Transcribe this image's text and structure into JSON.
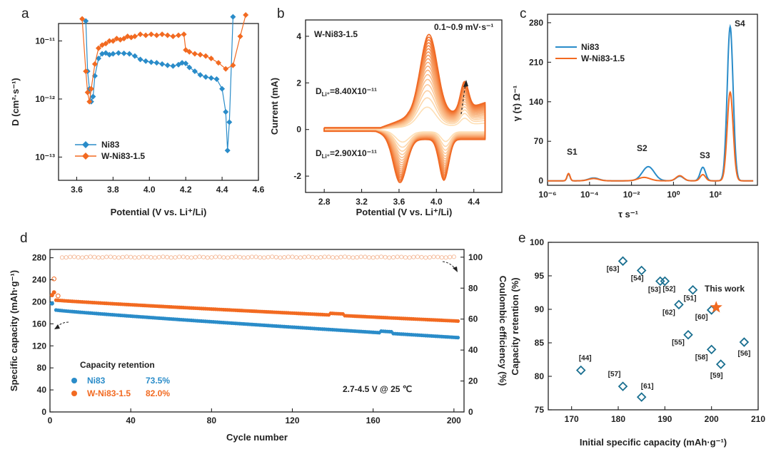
{
  "colors": {
    "ni83": "#2a8cc9",
    "wni": "#f26a21",
    "star": "#f26a21",
    "diamond": "#1a6f90"
  },
  "panel_labels": {
    "a": "a",
    "b": "b",
    "c": "c",
    "d": "d",
    "e": "e"
  },
  "chart_data": [
    {
      "id": "a",
      "type": "scatter",
      "xlabel": "Potential (V vs. Li⁺/Li)",
      "ylabel": "D (cm²·s⁻¹)",
      "xlim": [
        3.5,
        4.6
      ],
      "ylim_log10": [
        -13.4,
        -10.7
      ],
      "yscale": "log",
      "x_ticks": [
        "3.6",
        "3.8",
        "4.0",
        "4.2",
        "4.4",
        "4.6"
      ],
      "y_ticks": [
        "10⁻¹¹",
        "10⁻¹²",
        "10⁻¹³"
      ],
      "legend": [
        "Ni83",
        "W-Ni83-1.5"
      ],
      "series": [
        {
          "name": "Ni83",
          "x": [
            3.65,
            3.66,
            3.67,
            3.68,
            3.69,
            3.7,
            3.72,
            3.74,
            3.76,
            3.78,
            3.8,
            3.83,
            3.86,
            3.89,
            3.92,
            3.95,
            3.98,
            4.01,
            4.04,
            4.07,
            4.1,
            4.13,
            4.16,
            4.18,
            4.2,
            4.22,
            4.25,
            4.28,
            4.31,
            4.34,
            4.37,
            4.4,
            4.42,
            4.43,
            4.44,
            4.46
          ],
          "y": [
            2.2e-11,
            3e-12,
            1.5e-12,
            9e-13,
            1.1e-12,
            2.5e-12,
            5e-12,
            6e-12,
            6.2e-12,
            5.8e-12,
            6e-12,
            6.2e-12,
            6.1e-12,
            6e-12,
            5.5e-12,
            4.8e-12,
            4.5e-12,
            4.3e-12,
            4.2e-12,
            4e-12,
            3.8e-12,
            3.7e-12,
            3.9e-12,
            4.2e-12,
            4.1e-12,
            3.5e-12,
            3e-12,
            2.6e-12,
            2.4e-12,
            2.3e-12,
            2.2e-12,
            1.5e-12,
            6e-13,
            1.3e-13,
            4e-13,
            2.6e-11
          ]
        },
        {
          "name": "W-Ni83-1.5",
          "x": [
            3.63,
            3.65,
            3.66,
            3.67,
            3.68,
            3.7,
            3.72,
            3.74,
            3.76,
            3.78,
            3.8,
            3.82,
            3.84,
            3.86,
            3.88,
            3.9,
            3.92,
            3.95,
            3.98,
            4.01,
            4.04,
            4.07,
            4.1,
            4.13,
            4.16,
            4.19,
            4.2,
            4.22,
            4.25,
            4.28,
            4.31,
            4.34,
            4.38,
            4.42,
            4.46,
            4.5,
            4.53
          ],
          "y": [
            2.4e-11,
            3e-12,
            1.3e-12,
            9e-13,
            1.5e-12,
            4e-12,
            7.5e-12,
            8.5e-12,
            9e-12,
            1e-11,
            1e-11,
            1.1e-11,
            1.05e-11,
            1.1e-11,
            1.2e-11,
            1.15e-11,
            1.2e-11,
            1.3e-11,
            1.25e-11,
            1.3e-11,
            1.25e-11,
            1.3e-11,
            1.25e-11,
            1.2e-11,
            1.25e-11,
            1.3e-11,
            7e-12,
            6.5e-12,
            6e-12,
            5.8e-12,
            5.5e-12,
            5e-12,
            4.2e-12,
            3.3e-12,
            3.8e-12,
            1.2e-11,
            2.8e-11
          ]
        }
      ]
    },
    {
      "id": "b",
      "type": "line",
      "xlabel": "Potential (V vs. Li⁺/Li)",
      "ylabel": "Current (mA)",
      "xlim": [
        2.6,
        4.7
      ],
      "ylim": [
        -2.7,
        4.7
      ],
      "x_ticks": [
        "2.8",
        "3.2",
        "3.6",
        "4.0",
        "4.4"
      ],
      "y_ticks": [
        "4",
        "2",
        "0",
        "-2"
      ],
      "sample": "W-Ni83-1.5",
      "scan_rates": "0.1~0.9 mV·s⁻¹",
      "curve_count": 18,
      "peaks": {
        "anodic": [
          [
            3.9,
            4.1
          ],
          [
            4.3,
            2.1
          ]
        ],
        "cathodic": [
          [
            3.62,
            -2.4
          ],
          [
            4.1,
            -2.4
          ]
        ]
      },
      "annotations": {
        "d_top": "D",
        "d_top_sub": "Li⁺",
        "d_top_val": "=8.40X10⁻¹¹",
        "d_bot": "D",
        "d_bot_sub": "Li⁺",
        "d_bot_val": "=2.90X10⁻¹¹"
      }
    },
    {
      "id": "c",
      "type": "line",
      "xlabel": "τ s⁻¹",
      "ylabel": "γ (τ) Ω⁻¹",
      "xlim_log10": [
        -6,
        4
      ],
      "ylim": [
        -8,
        295
      ],
      "xscale": "log",
      "x_ticks": [
        "10⁻⁶",
        "10⁻⁴",
        "10⁻²",
        "10⁰",
        "10²"
      ],
      "y_ticks": [
        "280",
        "210",
        "140",
        "70",
        "0"
      ],
      "legend": [
        "Ni83",
        "W-Ni83-1.5"
      ],
      "peak_labels": [
        "S1",
        "S2",
        "S3",
        "S4"
      ],
      "series": [
        {
          "name": "Ni83",
          "peaks": [
            {
              "log_tau": -5.0,
              "height": 12
            },
            {
              "log_tau": -3.8,
              "height": 5
            },
            {
              "log_tau": -1.2,
              "height": 25
            },
            {
              "log_tau": 0.3,
              "height": 8
            },
            {
              "log_tau": 1.4,
              "height": 24
            },
            {
              "log_tau": 2.7,
              "height": 273
            }
          ]
        },
        {
          "name": "W-Ni83-1.5",
          "peaks": [
            {
              "log_tau": -5.0,
              "height": 13
            },
            {
              "log_tau": -3.8,
              "height": 4
            },
            {
              "log_tau": -1.4,
              "height": 6
            },
            {
              "log_tau": 0.3,
              "height": 9
            },
            {
              "log_tau": 1.4,
              "height": 11
            },
            {
              "log_tau": 2.7,
              "height": 157
            }
          ]
        }
      ]
    },
    {
      "id": "d",
      "type": "scatter",
      "xlabel": "Cycle number",
      "ylabel": "Specific capacity (mAh·g⁻¹)",
      "y2label": "Coulombic efficiency (%)",
      "xlim": [
        0,
        205
      ],
      "ylim": [
        0,
        295
      ],
      "y2lim": [
        0,
        105
      ],
      "x_ticks": [
        "0",
        "40",
        "80",
        "120",
        "160",
        "200"
      ],
      "y_ticks": [
        "0",
        "40",
        "80",
        "120",
        "160",
        "200",
        "240",
        "280"
      ],
      "y2_ticks": [
        "0",
        "20",
        "40",
        "60",
        "80",
        "100"
      ],
      "condition": "2.7-4.5 V @ 25 ℃",
      "legend_title": "Capacity retention",
      "series": [
        {
          "name": "Ni83",
          "retention": "73.5%",
          "capacity_start": 185,
          "capacity_end": 135
        },
        {
          "name": "W-Ni83-1.5",
          "retention": "82.0%",
          "capacity_start": 203,
          "capacity_end": 165
        }
      ],
      "coulombic_efficiency": 100
    },
    {
      "id": "e",
      "type": "scatter",
      "xlabel": "Initial specific capacity (mAh·g⁻¹)",
      "ylabel": "Capacity retention (%)",
      "xlim": [
        165,
        210
      ],
      "ylim": [
        75,
        100
      ],
      "x_ticks": [
        "170",
        "180",
        "190",
        "200",
        "210"
      ],
      "y_ticks": [
        "75",
        "80",
        "85",
        "90",
        "95",
        "100"
      ],
      "this_work": {
        "x": 201,
        "y": 90.3,
        "label": "This work"
      },
      "points": [
        {
          "ref": "[63]",
          "x": 181,
          "y": 97.2
        },
        {
          "ref": "[54]",
          "x": 185,
          "y": 95.8
        },
        {
          "ref": "[53]",
          "x": 189,
          "y": 94.2
        },
        {
          "ref": "[52]",
          "x": 190,
          "y": 94.2
        },
        {
          "ref": "[51]",
          "x": 196,
          "y": 92.9
        },
        {
          "ref": "[62]",
          "x": 193,
          "y": 90.7
        },
        {
          "ref": "[60]",
          "x": 200,
          "y": 89.9
        },
        {
          "ref": "[55]",
          "x": 195,
          "y": 86.2
        },
        {
          "ref": "[56]",
          "x": 207,
          "y": 85.1
        },
        {
          "ref": "[58]",
          "x": 200,
          "y": 84.0
        },
        {
          "ref": "[59]",
          "x": 202,
          "y": 81.8
        },
        {
          "ref": "[44]",
          "x": 172,
          "y": 80.9
        },
        {
          "ref": "[57]",
          "x": 181,
          "y": 78.5
        },
        {
          "ref": "[61]",
          "x": 185,
          "y": 76.9
        }
      ]
    }
  ]
}
